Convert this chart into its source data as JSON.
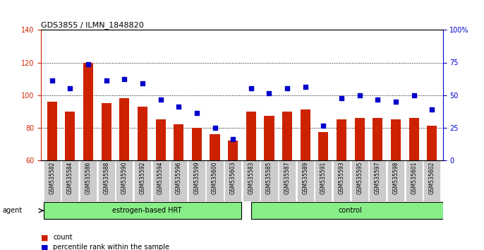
{
  "title": "GDS3855 / ILMN_1848820",
  "categories": [
    "GSM535582",
    "GSM535584",
    "GSM535586",
    "GSM535588",
    "GSM535590",
    "GSM535592",
    "GSM535594",
    "GSM535596",
    "GSM535599",
    "GSM535600",
    "GSM535603",
    "GSM535583",
    "GSM535585",
    "GSM535587",
    "GSM535589",
    "GSM535591",
    "GSM535593",
    "GSM535595",
    "GSM535597",
    "GSM535598",
    "GSM535601",
    "GSM535602"
  ],
  "bar_values": [
    96,
    90,
    120,
    95,
    98,
    93,
    85,
    82,
    80,
    76,
    72,
    90,
    87,
    90,
    91,
    77,
    85,
    86,
    86,
    85,
    86,
    81
  ],
  "dot_values": [
    109,
    104,
    119,
    109,
    110,
    107,
    97,
    93,
    89,
    80,
    73,
    104,
    101,
    104,
    105,
    81,
    98,
    100,
    97,
    96,
    100,
    91
  ],
  "group1_label": "estrogen-based HRT",
  "group2_label": "control",
  "group1_count": 11,
  "group2_count": 11,
  "bar_color": "#cc2200",
  "dot_color": "#0000cc",
  "ylim_left": [
    60,
    140
  ],
  "ylim_right": [
    0,
    100
  ],
  "yticks_left": [
    60,
    80,
    100,
    120,
    140
  ],
  "yticks_right": [
    0,
    25,
    50,
    75,
    100
  ],
  "ytick_labels_right": [
    "0",
    "25",
    "50",
    "75",
    "100%"
  ],
  "group_bg_color": "#88ee88",
  "xlabel_bg_color": "#cccccc",
  "agent_label": "agent",
  "legend_count_label": "count",
  "legend_pct_label": "percentile rank within the sample"
}
